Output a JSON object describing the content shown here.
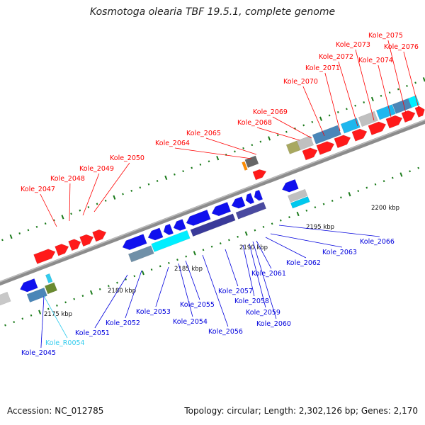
{
  "title": "Kosmotoga olearia TBF 19.5.1, complete genome",
  "footer": {
    "accession": "Accession: NC_012785",
    "stats": "Topology: circular; Length: 2,302,126 bp; Genes: 2,170"
  },
  "colors": {
    "forward_gene": "#ff0000",
    "reverse_gene": "#0000ee",
    "rna_label": "#33ccee",
    "axis": "#8c8c8c",
    "tick": "#1a7a1a",
    "cyan_track": "#00eeff",
    "steel_track": "#4682b4"
  },
  "scale_labels": [
    "2175 kbp",
    "2180 kbp",
    "2185 kbp",
    "2190 kbp",
    "2195 kbp",
    "2200 kbp"
  ],
  "forward_labels": [
    "Kole_2047",
    "Kole_2048",
    "Kole_2049",
    "Kole_2050",
    "Kole_2064",
    "Kole_2065",
    "Kole_2068",
    "Kole_2069",
    "Kole_2070",
    "Kole_2071",
    "Kole_2072",
    "Kole_2073",
    "Kole_2074",
    "Kole_2075",
    "Kole_2076"
  ],
  "reverse_labels": [
    "Kole_2045",
    "Kole_R0054",
    "Kole_2051",
    "Kole_2052",
    "Kole_2053",
    "Kole_2054",
    "Kole_2055",
    "Kole_2056",
    "Kole_2057",
    "Kole_2058",
    "Kole_2059",
    "Kole_2060",
    "Kole_2061",
    "Kole_2062",
    "Kole_2063",
    "Kole_2066"
  ]
}
